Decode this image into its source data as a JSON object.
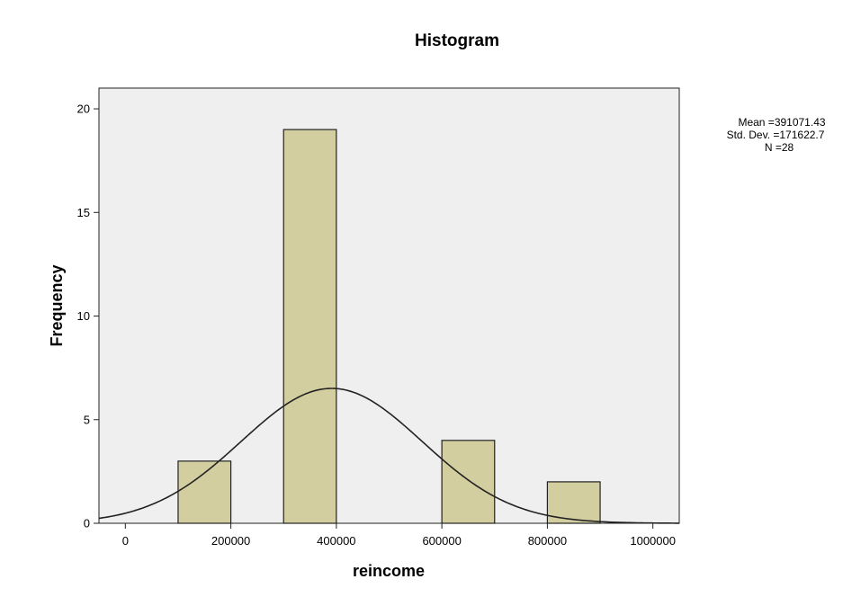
{
  "chart_data": {
    "type": "bar",
    "title": "Histogram",
    "xlabel": "reincome",
    "ylabel": "Frequency",
    "xlim": [
      -50000,
      1050000
    ],
    "ylim": [
      0,
      21
    ],
    "x_ticks": [
      0,
      200000,
      400000,
      600000,
      800000,
      1000000
    ],
    "x_tick_labels": [
      "0",
      "200000",
      "400000",
      "600000",
      "800000",
      "1000000"
    ],
    "y_ticks": [
      0,
      5,
      10,
      15,
      20
    ],
    "y_tick_labels": [
      "0",
      "5",
      "10",
      "15",
      "20"
    ],
    "bins": [
      {
        "start": 100000,
        "end": 200000,
        "count": 3
      },
      {
        "start": 300000,
        "end": 400000,
        "count": 19
      },
      {
        "start": 600000,
        "end": 700000,
        "count": 4
      },
      {
        "start": 800000,
        "end": 900000,
        "count": 2
      }
    ],
    "normal_curve": {
      "mean": 391071.43,
      "sd": 171622.7,
      "n": 28,
      "bin_width": 100000
    },
    "stats": {
      "mean_label": "Mean =391071.43",
      "sd_label": "Std. Dev. =171622.7",
      "n_label": "N =28"
    },
    "colors": {
      "plot_bg": "#efefef",
      "bar_fill": "#d3ce9f",
      "bar_stroke": "#222222",
      "curve": "#222222"
    },
    "grid": false
  }
}
